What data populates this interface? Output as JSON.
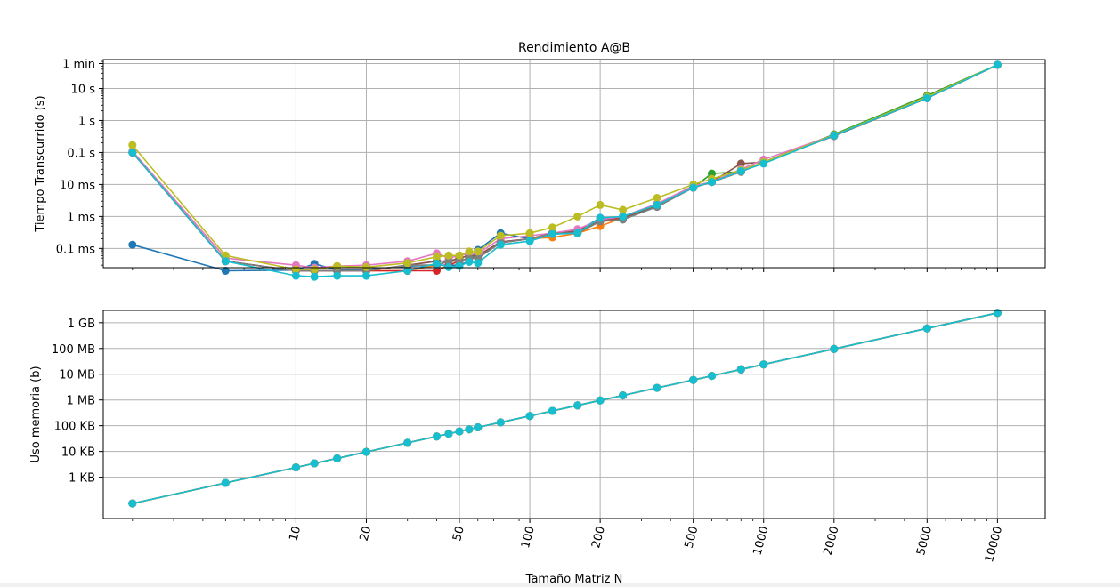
{
  "colors": {
    "series": [
      "#1f77b4",
      "#ff7f0e",
      "#2ca02c",
      "#d62728",
      "#9467bd",
      "#8c564b",
      "#e377c2",
      "#7f7f7f",
      "#bcbd22",
      "#17becf"
    ],
    "grid": "#b0b0b0",
    "axis": "#000000"
  },
  "chart_data": [
    {
      "type": "line",
      "title": "Rendimiento A@B",
      "xlabel": "",
      "ylabel": "Tiempo Transcurrido (s)",
      "xscale": "log",
      "yscale": "log",
      "xlim": [
        1.5,
        16000
      ],
      "ylim": [
        2.5e-05,
        80
      ],
      "grid": true,
      "ytick_values": [
        0.0001,
        0.001,
        0.01,
        0.1,
        1,
        10,
        60
      ],
      "ytick_labels": [
        "0.1 ms",
        "1 ms",
        "10 ms",
        "0.1 s",
        "1 s",
        "10 s",
        "1 min"
      ],
      "x": [
        2,
        5,
        10,
        12,
        15,
        20,
        30,
        40,
        45,
        50,
        55,
        60,
        75,
        100,
        125,
        160,
        200,
        250,
        350,
        500,
        600,
        800,
        1000,
        2000,
        5000,
        10000
      ],
      "series": [
        {
          "values": [
            0.00013,
            2e-05,
            2.1e-05,
            3.3e-05,
            2.1e-05,
            2.2e-05,
            2.8e-05,
            3e-05,
            3e-05,
            3e-05,
            4e-05,
            9e-05,
            0.0003,
            0.0002,
            0.00027,
            0.00035,
            0.0009,
            0.0009,
            0.002,
            0.008,
            0.012,
            0.025,
            0.05,
            0.33,
            5,
            55
          ]
        },
        {
          "values": [
            0.1,
            4e-05,
            2e-05,
            2e-05,
            2e-05,
            2e-05,
            2e-05,
            3e-05,
            4e-05,
            4e-05,
            5e-05,
            5e-05,
            0.00015,
            0.0002,
            0.00022,
            0.0003,
            0.0005,
            0.0009,
            0.0022,
            0.008,
            0.012,
            0.025,
            0.05,
            0.33,
            5,
            55
          ]
        },
        {
          "values": [
            0.1,
            4e-05,
            2e-05,
            2e-05,
            2e-05,
            2e-05,
            3e-05,
            3e-05,
            4e-05,
            4e-05,
            5e-05,
            6e-05,
            0.00015,
            0.0002,
            0.0003,
            0.0003,
            0.0008,
            0.0009,
            0.0022,
            0.008,
            0.022,
            0.025,
            0.05,
            0.37,
            6,
            55
          ]
        },
        {
          "values": [
            0.1,
            4e-05,
            2e-05,
            2e-05,
            2e-05,
            2e-05,
            2e-05,
            2e-05,
            3e-05,
            4e-05,
            5e-05,
            5e-05,
            0.00015,
            0.0002,
            0.0003,
            0.0003,
            0.0007,
            0.0009,
            0.0022,
            0.008,
            0.012,
            0.025,
            0.05,
            0.33,
            5,
            55
          ]
        },
        {
          "values": [
            0.1,
            4e-05,
            2e-05,
            2e-05,
            2e-05,
            2e-05,
            3e-05,
            4e-05,
            4e-05,
            5e-05,
            6e-05,
            6e-05,
            0.00016,
            0.0002,
            0.0003,
            0.00035,
            0.0008,
            0.001,
            0.0023,
            0.008,
            0.012,
            0.025,
            0.05,
            0.33,
            5,
            55
          ]
        },
        {
          "values": [
            0.1,
            4e-05,
            2e-05,
            2e-05,
            2e-05,
            2e-05,
            3e-05,
            4e-05,
            4e-05,
            5e-05,
            6e-05,
            6e-05,
            0.00016,
            0.0002,
            0.0003,
            0.00035,
            0.0008,
            0.0009,
            0.0022,
            0.008,
            0.012,
            0.045,
            0.05,
            0.33,
            5,
            55
          ]
        },
        {
          "values": [
            0.11,
            5e-05,
            3e-05,
            2.5e-05,
            2.8e-05,
            3e-05,
            4e-05,
            7e-05,
            5e-05,
            6e-05,
            7e-05,
            7e-05,
            0.0002,
            0.00025,
            0.0003,
            0.0004,
            0.0008,
            0.001,
            0.0025,
            0.009,
            0.012,
            0.03,
            0.06,
            0.35,
            5,
            55
          ]
        },
        {
          "values": [
            0.1,
            4e-05,
            2e-05,
            2e-05,
            2e-05,
            2e-05,
            3e-05,
            3e-05,
            4e-05,
            4e-05,
            5e-05,
            5e-05,
            0.00015,
            0.0002,
            0.0003,
            0.0003,
            0.0007,
            0.0008,
            0.002,
            0.008,
            0.012,
            0.025,
            0.05,
            0.33,
            5,
            55
          ]
        },
        {
          "values": [
            0.17,
            6e-05,
            2.2e-05,
            2.2e-05,
            2.8e-05,
            2.6e-05,
            3.5e-05,
            5.5e-05,
            6e-05,
            6e-05,
            8e-05,
            8e-05,
            0.00025,
            0.0003,
            0.00045,
            0.001,
            0.0023,
            0.0016,
            0.0038,
            0.01,
            0.015,
            0.028,
            0.05,
            0.35,
            5.5,
            55
          ]
        },
        {
          "values": [
            0.1,
            4e-05,
            1.4e-05,
            1.3e-05,
            1.4e-05,
            1.4e-05,
            2e-05,
            3.4e-05,
            2.6e-05,
            2.8e-05,
            3.8e-05,
            3.5e-05,
            0.00013,
            0.00017,
            0.00028,
            0.0003,
            0.0009,
            0.001,
            0.0023,
            0.008,
            0.012,
            0.026,
            0.045,
            0.34,
            5,
            55
          ]
        }
      ]
    },
    {
      "type": "line",
      "title": "",
      "xlabel": "Tamaño Matriz N",
      "ylabel": "Uso memoria (b)",
      "xscale": "log",
      "yscale": "log",
      "xlim": [
        1.5,
        16000
      ],
      "ylim": [
        25,
        3000000000
      ],
      "grid": true,
      "ytick_values": [
        1000,
        10000,
        100000,
        1000000,
        10000000,
        100000000,
        1000000000
      ],
      "ytick_labels": [
        "1 KB",
        "10 KB",
        "100 KB",
        "1 MB",
        "10 MB",
        "100 MB",
        "1 GB"
      ],
      "xtick_values": [
        10,
        20,
        50,
        100,
        200,
        500,
        1000,
        2000,
        5000,
        10000
      ],
      "xtick_labels": [
        "10",
        "20",
        "50",
        "100",
        "200",
        "500",
        "1000",
        "2000",
        "5000",
        "10000"
      ],
      "x": [
        2,
        5,
        10,
        12,
        15,
        20,
        30,
        40,
        45,
        50,
        55,
        60,
        75,
        100,
        125,
        160,
        200,
        250,
        350,
        500,
        600,
        800,
        1000,
        2000,
        5000,
        10000
      ],
      "values": [
        96,
        600,
        2400,
        3456,
        5400,
        9600,
        21600,
        38400,
        48600,
        60000,
        72600,
        86400,
        135000,
        240000,
        375000,
        614400,
        960000,
        1500000,
        2940000,
        6000000,
        8640000,
        15360000,
        24000000,
        96000000,
        600000000,
        2400000000
      ],
      "series_count": 10
    }
  ]
}
